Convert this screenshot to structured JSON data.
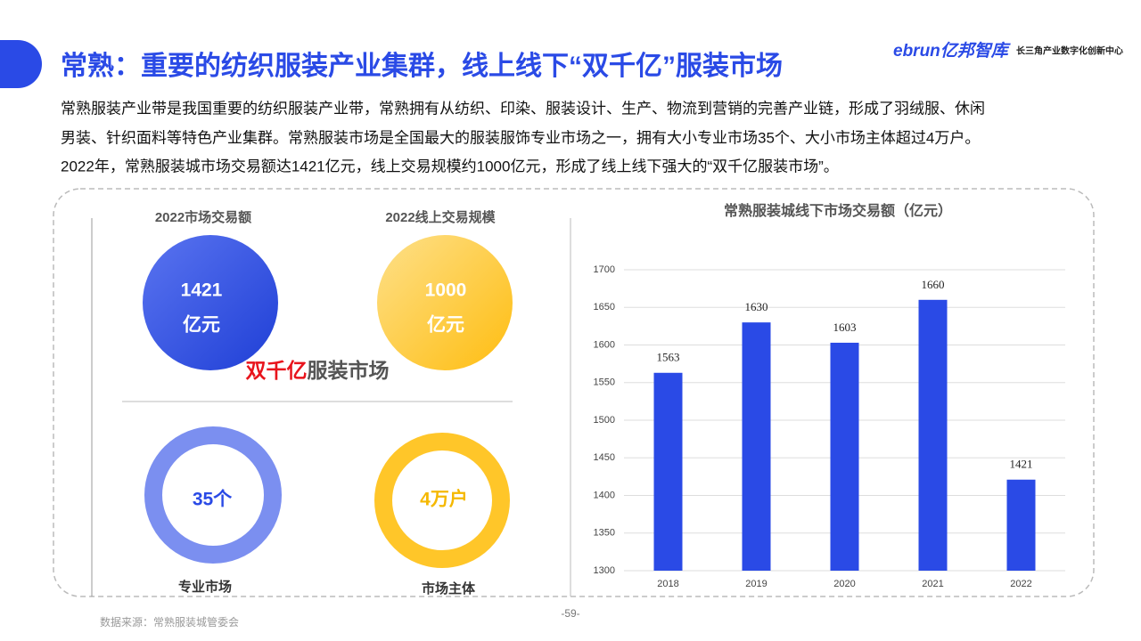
{
  "header": {
    "title": "常熟：重要的纺织服装产业集群，线上线下“双千亿”服装市场",
    "logo": "ebrun亿邦智库",
    "logo_sub": "长三角产业数字化创新中心"
  },
  "body": {
    "lines": [
      "常熟服装产业带是我国重要的纺织服装产业带，常熟拥有从纺织、印染、服装设计、生产、物流到营销的完善产业链，形成了羽绒服、休闲",
      "男装、针织面料等特色产业集群。常熟服装市场是全国最大的服装服饰专业市场之一，拥有大小专业市场35个、大小市场主体超过4万户。",
      "2022年，常熟服装城市场交易额达1421亿元，线上交易规模约1000亿元，形成了线上线下强大的“双千亿服装市场”。"
    ]
  },
  "stats": {
    "circles": [
      {
        "label": "2022市场交易额",
        "number": "1421",
        "unit": "亿元"
      },
      {
        "label": "2022线上交易规模",
        "number": "1000",
        "unit": "亿元"
      }
    ],
    "center_red": "双千亿",
    "center_gray": "服装市场",
    "rings": [
      {
        "text": "35个",
        "label": "专业市场"
      },
      {
        "text": "4万户",
        "label": "市场主体"
      }
    ]
  },
  "chart_data": {
    "type": "bar",
    "title": "常熟服装城线下市场交易额（亿元）",
    "categories": [
      "2018",
      "2019",
      "2020",
      "2021",
      "2022"
    ],
    "values": [
      1563,
      1630,
      1603,
      1660,
      1421
    ],
    "color": "#2a4ae6",
    "ylim": [
      1300,
      1700
    ],
    "yticks": [
      1300,
      1350,
      1400,
      1450,
      1500,
      1550,
      1600,
      1650,
      1700
    ],
    "grid": true
  },
  "footer": {
    "source": "数据来源：常熟服装城管委会",
    "page": "-59-"
  }
}
